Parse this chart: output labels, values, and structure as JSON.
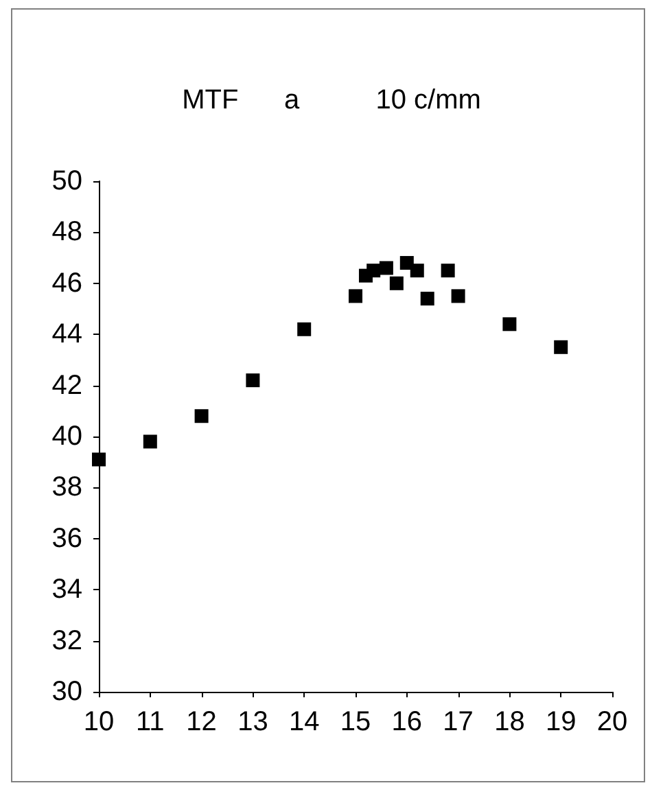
{
  "chart_data": {
    "type": "scatter",
    "title": "MTF      a          10 c/mm",
    "x": [
      10,
      11,
      12,
      13,
      14,
      15,
      15.2,
      15.35,
      15.6,
      15.8,
      16,
      16.2,
      16.4,
      16.8,
      17,
      18,
      19
    ],
    "series": [
      {
        "color": "#000000",
        "values": [
          39.1,
          39.8,
          40.8,
          42.2,
          44.2,
          45.5,
          46.3,
          46.5,
          46.6,
          46.0,
          46.8,
          46.5,
          45.4,
          46.5,
          45.5,
          44.4,
          43.5
        ]
      }
    ],
    "xlim": [
      10,
      20
    ],
    "xticks": [
      10,
      11,
      12,
      13,
      14,
      15,
      16,
      17,
      18,
      19,
      20
    ],
    "ylim": [
      30,
      50
    ],
    "yticks": [
      30,
      32,
      34,
      36,
      38,
      40,
      42,
      44,
      46,
      48,
      50
    ],
    "marker": "square",
    "grid": false
  }
}
